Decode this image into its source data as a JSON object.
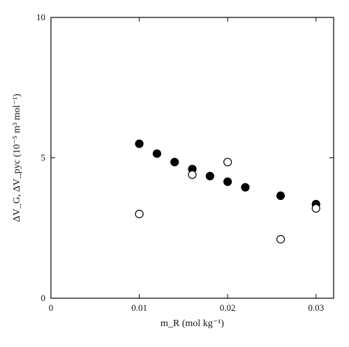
{
  "chart_data": {
    "type": "scatter",
    "title": "",
    "xlabel": "m_R (mol kg⁻¹)",
    "ylabel": "ΔV_G, ΔV_pyc (10⁻⁵ m³ mol⁻¹)",
    "xlim": [
      0,
      0.032
    ],
    "ylim": [
      0,
      10
    ],
    "x_ticks": [
      0,
      0.01,
      0.02,
      0.03
    ],
    "x_tick_labels": [
      "0",
      "0.01",
      "0.02",
      "0.03"
    ],
    "y_ticks": [
      0,
      5,
      10
    ],
    "y_tick_labels": [
      "0",
      "5",
      "10"
    ],
    "grid": false,
    "legend": false,
    "series": [
      {
        "marker": "filled-circle",
        "color": "#000000",
        "points": [
          {
            "x": 0.01,
            "y": 5.5
          },
          {
            "x": 0.012,
            "y": 5.15
          },
          {
            "x": 0.014,
            "y": 4.85
          },
          {
            "x": 0.016,
            "y": 4.6
          },
          {
            "x": 0.018,
            "y": 4.35
          },
          {
            "x": 0.02,
            "y": 4.15
          },
          {
            "x": 0.022,
            "y": 3.95
          },
          {
            "x": 0.026,
            "y": 3.65
          },
          {
            "x": 0.03,
            "y": 3.35
          }
        ]
      },
      {
        "marker": "open-circle",
        "color": "#000000",
        "points": [
          {
            "x": 0.01,
            "y": 3.0
          },
          {
            "x": 0.016,
            "y": 4.4
          },
          {
            "x": 0.02,
            "y": 4.85
          },
          {
            "x": 0.026,
            "y": 2.1
          },
          {
            "x": 0.03,
            "y": 3.2
          }
        ]
      }
    ]
  }
}
